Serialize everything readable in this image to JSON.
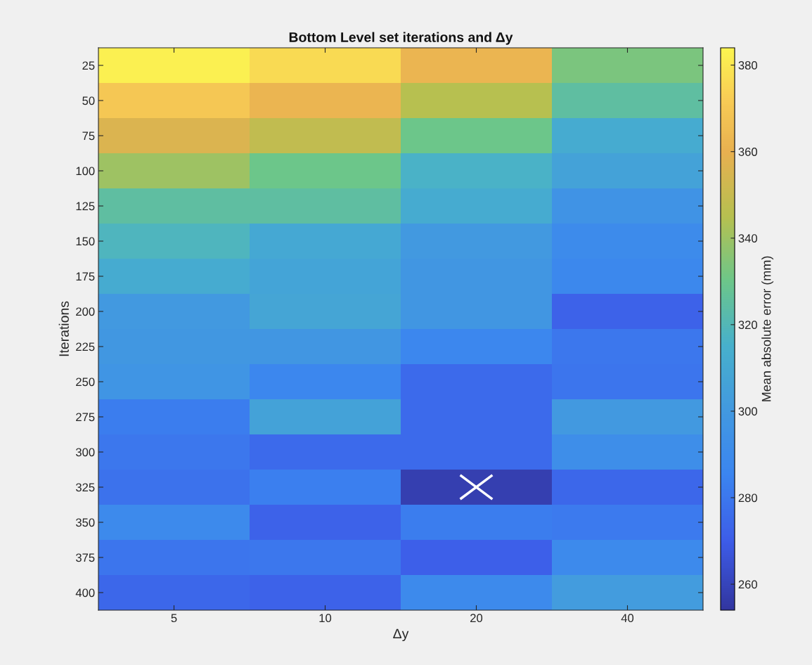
{
  "chart_data": {
    "type": "heatmap",
    "title": "Bottom Level set iterations and Δy",
    "xlabel": "Δy",
    "ylabel": "Iterations",
    "clabel": "Mean absolute error (mm)",
    "categories": [
      "5",
      "10",
      "20",
      "40"
    ],
    "y_categories": [
      "25",
      "50",
      "75",
      "100",
      "125",
      "150",
      "175",
      "200",
      "225",
      "250",
      "275",
      "300",
      "325",
      "350",
      "375",
      "400"
    ],
    "cells": [
      [
        382,
        376,
        362,
        333
      ],
      [
        370,
        362,
        345,
        325
      ],
      [
        356,
        348,
        330,
        312
      ],
      [
        340,
        330,
        316,
        306
      ],
      [
        325,
        325,
        312,
        296
      ],
      [
        318,
        310,
        300,
        290
      ],
      [
        312,
        307,
        298,
        288
      ],
      [
        300,
        308,
        298,
        272
      ],
      [
        299,
        298,
        287,
        280
      ],
      [
        297,
        287,
        275,
        279
      ],
      [
        282,
        306,
        275,
        300
      ],
      [
        280,
        275,
        275,
        292
      ],
      [
        278,
        283,
        258,
        274
      ],
      [
        289,
        272,
        282,
        281
      ],
      [
        279,
        280,
        271,
        289
      ],
      [
        274,
        272,
        289,
        302
      ]
    ],
    "clim": [
      254,
      384
    ],
    "cticks": [
      260,
      280,
      300,
      320,
      340,
      360,
      380
    ]
  }
}
